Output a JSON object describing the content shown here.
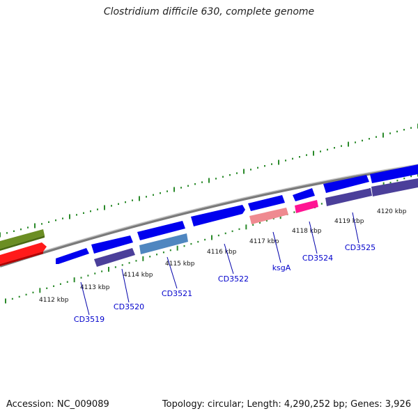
{
  "title": "Clostridium difficile 630, complete genome",
  "footer": {
    "accession": "Accession: NC_009089",
    "summary": "Topology: circular; Length: 4,290,252 bp; Genes: 3,926"
  },
  "colors": {
    "backbone": "#8a8a8a",
    "ticks": "#2a8a2a",
    "label": "#0000cc",
    "forward_gene": "#0000ee",
    "reverse_gene": "#4b3f9a",
    "steelblue_gene": "#4f86c0",
    "pink_gene": "#ef8a90",
    "magenta_gene": "#ff1493",
    "olive_gene": "#6b8e23",
    "red_gene": "#ff0000"
  },
  "ruler": [
    "4112 kbp",
    "4113 kbp",
    "4114 kbp",
    "4115 kbp",
    "4116 kbp",
    "4117 kbp",
    "4118 kbp",
    "4119 kbp",
    "4120 kbp"
  ],
  "genes": [
    {
      "name": "CD3519",
      "label": "CD3519"
    },
    {
      "name": "CD3520",
      "label": "CD3520"
    },
    {
      "name": "CD3521",
      "label": "CD3521"
    },
    {
      "name": "CD3522",
      "label": "CD3522"
    },
    {
      "name": "ksgA",
      "label": "ksgA"
    },
    {
      "name": "CD3524",
      "label": "CD3524"
    },
    {
      "name": "CD3525",
      "label": "CD3525"
    }
  ]
}
